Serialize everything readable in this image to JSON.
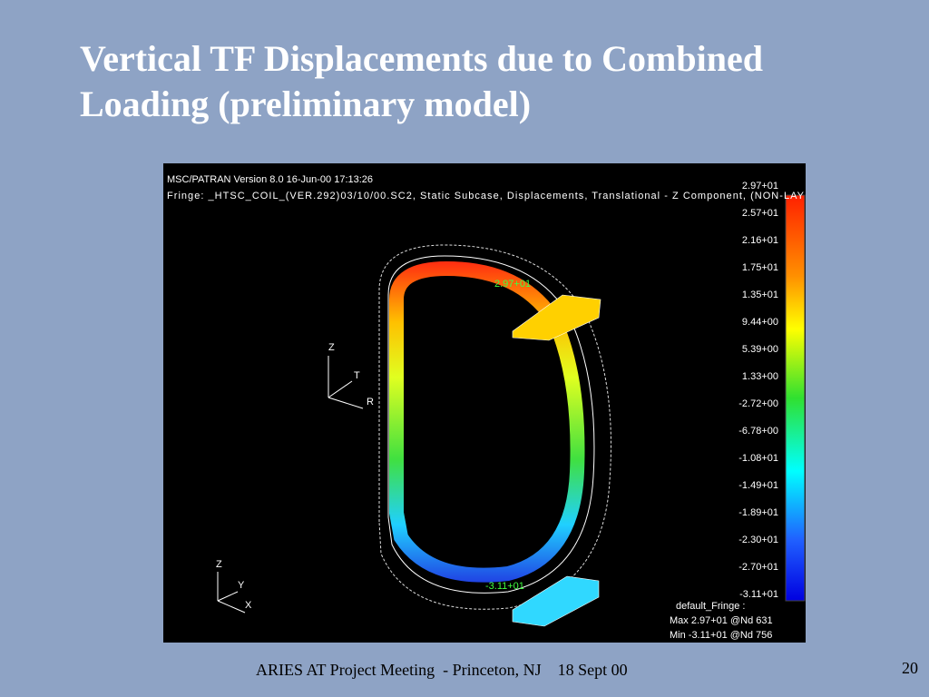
{
  "title": "Vertical TF Displacements due to Combined Loading (preliminary model)",
  "footer": "ARIES AT Project Meeting  - Princeton, NJ    18 Sept 00",
  "page_number": "20",
  "screenshot": {
    "header": [
      "MSC/PATRAN Version 8.0 16-Jun-00 17:13:26",
      "Fringe: _HTSC_COIL_(VER.292)03/10/00.SC2, Static Subcase, Displacements, Translational - Z Component, (NON-LAY"
    ],
    "legend_labels": [
      "2.97+01",
      "2.57+01",
      "2.16+01",
      "1.75+01",
      "1.35+01",
      "9.44+00",
      "5.39+00",
      "1.33+00",
      "-2.72+00",
      "-6.78+00",
      "-1.08+01",
      "-1.49+01",
      "-1.89+01",
      "-2.30+01",
      "-2.70+01",
      "-3.11+01"
    ],
    "fringe_info": [
      "default_Fringe :",
      "Max 2.97+01 @Nd 631",
      "Min -3.11+01 @Nd 756"
    ],
    "triad_labels": [
      "Z",
      "T",
      "R",
      "Z",
      "Y",
      "X"
    ],
    "model_labels": [
      "2.97+01",
      "-3.11+01"
    ]
  }
}
